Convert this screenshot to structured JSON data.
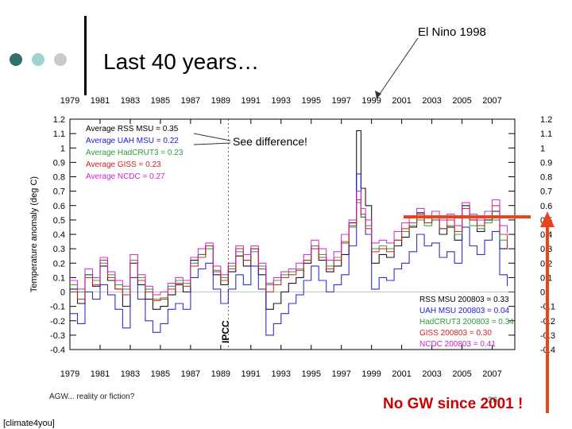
{
  "slide": {
    "title": "Last 40 years…",
    "footer_left": "AGW... reality or fiction?",
    "credit": "[climate4you]",
    "page_number": "26",
    "annotation_elnino": "El Nino 1998",
    "annotation_nogw": "No GW since 2001 !",
    "dot_colors": [
      "#2f6f6f",
      "#9fd0d4",
      "#c9c9c9"
    ]
  },
  "chart_data": {
    "type": "line",
    "title": "",
    "ylabel": "Temperature anomaly (deg C)",
    "xlabel": "",
    "ylim": [
      -0.4,
      1.2
    ],
    "yticks": [
      1.2,
      1.1,
      1,
      0.9,
      0.8,
      0.7,
      0.6,
      0.5,
      0.4,
      0.3,
      0.2,
      0.1,
      0,
      -0.1,
      -0.2,
      -0.3,
      -0.4
    ],
    "ytick_labels": [
      "1.2",
      "1.1",
      "1",
      "0.9",
      "0.8",
      "0.7",
      "0.6",
      "0.5",
      "0.4",
      "0.3",
      "0.2",
      "0.1",
      "0",
      "-0.1",
      "-0.2",
      "-0.3",
      "-0.4"
    ],
    "xlim": [
      1979,
      2008.5
    ],
    "xticks": [
      1979,
      1981,
      1983,
      1985,
      1987,
      1989,
      1991,
      1993,
      1995,
      1997,
      1999,
      2001,
      2003,
      2005,
      2007
    ],
    "legend_top_left": [
      {
        "text": "Average RSS MSU = 0.35",
        "color": "#000000"
      },
      {
        "text": "Average UAH MSU = 0.22",
        "color": "#1a1acc"
      },
      {
        "text": "Average HadCRUT3 = 0.23",
        "color": "#2a9a3a"
      },
      {
        "text": "Average GISS = 0.23",
        "color": "#cc2222"
      },
      {
        "text": "Average NCDC = 0.27",
        "color": "#cc22cc"
      }
    ],
    "legend_bottom_right": [
      {
        "text": "RSS MSU 200803 = 0.33",
        "color": "#000000"
      },
      {
        "text": "UAH MSU 200803 = 0.04",
        "color": "#1a1acc"
      },
      {
        "text": "HadCRUT3 200803 = 0.34",
        "color": "#2a9a3a"
      },
      {
        "text": "GISS 200803 = 0.30",
        "color": "#cc2222"
      },
      {
        "text": "NCDC 200803 = 0.41",
        "color": "#cc22cc"
      }
    ],
    "annotations": {
      "see_difference": "See difference!",
      "ipcc": "IPCC"
    },
    "series": [
      {
        "name": "RSS MSU",
        "color": "#000000",
        "x": [
          1979,
          1979.5,
          1980,
          1980.5,
          1981,
          1981.5,
          1982,
          1982.5,
          1983,
          1983.5,
          1984,
          1984.5,
          1985,
          1985.5,
          1986,
          1986.5,
          1987,
          1987.5,
          1988,
          1988.5,
          1989,
          1989.5,
          1990,
          1990.5,
          1991,
          1991.5,
          1992,
          1992.5,
          1993,
          1993.5,
          1994,
          1994.5,
          1995,
          1995.5,
          1996,
          1996.5,
          1997,
          1997.5,
          1998,
          1998.3,
          1998.6,
          1999,
          1999.5,
          2000,
          2000.5,
          2001,
          2001.5,
          2002,
          2002.5,
          2003,
          2003.5,
          2004,
          2004.5,
          2005,
          2005.5,
          2006,
          2006.5,
          2007,
          2007.5,
          2008
        ],
        "y": [
          0.02,
          -0.08,
          0.12,
          0.04,
          0.18,
          0.08,
          0.02,
          -0.1,
          0.2,
          0.05,
          -0.05,
          -0.12,
          -0.1,
          -0.02,
          0.05,
          0.0,
          0.22,
          0.26,
          0.32,
          0.12,
          0.05,
          0.14,
          0.25,
          0.18,
          0.3,
          0.12,
          -0.12,
          -0.08,
          0.0,
          0.06,
          0.1,
          0.2,
          0.32,
          0.22,
          0.14,
          0.18,
          0.26,
          0.48,
          1.12,
          0.72,
          0.6,
          0.2,
          0.26,
          0.24,
          0.32,
          0.38,
          0.45,
          0.55,
          0.48,
          0.5,
          0.4,
          0.45,
          0.36,
          0.6,
          0.5,
          0.42,
          0.5,
          0.56,
          0.3,
          0.33
        ]
      },
      {
        "name": "UAH MSU",
        "color": "#1a1acc",
        "x": [
          1979,
          1979.5,
          1980,
          1980.5,
          1981,
          1981.5,
          1982,
          1982.5,
          1983,
          1983.5,
          1984,
          1984.5,
          1985,
          1985.5,
          1986,
          1986.5,
          1987,
          1987.5,
          1988,
          1988.5,
          1989,
          1989.5,
          1990,
          1990.5,
          1991,
          1991.5,
          1992,
          1992.5,
          1993,
          1993.5,
          1994,
          1994.5,
          1995,
          1995.5,
          1996,
          1996.5,
          1997,
          1997.5,
          1998,
          1998.3,
          1998.6,
          1999,
          1999.5,
          2000,
          2000.5,
          2001,
          2001.5,
          2002,
          2002.5,
          2003,
          2003.5,
          2004,
          2004.5,
          2005,
          2005.5,
          2006,
          2006.5,
          2007,
          2007.5,
          2008
        ],
        "y": [
          -0.15,
          -0.22,
          0.0,
          -0.05,
          0.05,
          -0.02,
          -0.12,
          -0.25,
          0.1,
          -0.05,
          -0.2,
          -0.28,
          -0.22,
          -0.12,
          -0.08,
          -0.12,
          0.1,
          0.16,
          0.2,
          0.02,
          -0.08,
          0.02,
          0.12,
          0.05,
          0.18,
          0.02,
          -0.3,
          -0.22,
          -0.15,
          -0.08,
          -0.02,
          0.08,
          0.18,
          0.08,
          0.0,
          0.05,
          0.12,
          0.32,
          0.82,
          0.52,
          0.4,
          0.02,
          0.1,
          0.08,
          0.16,
          0.2,
          0.28,
          0.4,
          0.32,
          0.34,
          0.24,
          0.28,
          0.2,
          0.45,
          0.32,
          0.26,
          0.36,
          0.42,
          0.12,
          0.04
        ]
      },
      {
        "name": "HadCRUT3",
        "color": "#2a9a3a",
        "x": [
          1979,
          1979.5,
          1980,
          1980.5,
          1981,
          1981.5,
          1982,
          1982.5,
          1983,
          1983.5,
          1984,
          1984.5,
          1985,
          1985.5,
          1986,
          1986.5,
          1987,
          1987.5,
          1988,
          1988.5,
          1989,
          1989.5,
          1990,
          1990.5,
          1991,
          1991.5,
          1992,
          1992.5,
          1993,
          1993.5,
          1994,
          1994.5,
          1995,
          1995.5,
          1996,
          1996.5,
          1997,
          1997.5,
          1998,
          1998.3,
          1998.6,
          1999,
          1999.5,
          2000,
          2000.5,
          2001,
          2001.5,
          2002,
          2002.5,
          2003,
          2003.5,
          2004,
          2004.5,
          2005,
          2005.5,
          2006,
          2006.5,
          2007,
          2007.5,
          2008
        ],
        "y": [
          0.05,
          0.0,
          0.12,
          0.08,
          0.2,
          0.12,
          0.05,
          0.02,
          0.22,
          0.1,
          0.02,
          -0.05,
          -0.04,
          0.04,
          0.08,
          0.06,
          0.2,
          0.26,
          0.3,
          0.15,
          0.1,
          0.18,
          0.28,
          0.22,
          0.28,
          0.18,
          0.05,
          0.08,
          0.12,
          0.14,
          0.16,
          0.22,
          0.32,
          0.26,
          0.18,
          0.24,
          0.35,
          0.45,
          0.62,
          0.52,
          0.46,
          0.3,
          0.32,
          0.3,
          0.36,
          0.42,
          0.46,
          0.5,
          0.46,
          0.5,
          0.44,
          0.46,
          0.4,
          0.52,
          0.46,
          0.44,
          0.48,
          0.5,
          0.36,
          0.34
        ]
      },
      {
        "name": "GISS",
        "color": "#cc2222",
        "x": [
          1979,
          1979.5,
          1980,
          1980.5,
          1981,
          1981.5,
          1982,
          1982.5,
          1983,
          1983.5,
          1984,
          1984.5,
          1985,
          1985.5,
          1986,
          1986.5,
          1987,
          1987.5,
          1988,
          1988.5,
          1989,
          1989.5,
          1990,
          1990.5,
          1991,
          1991.5,
          1992,
          1992.5,
          1993,
          1993.5,
          1994,
          1994.5,
          1995,
          1995.5,
          1996,
          1996.5,
          1997,
          1997.5,
          1998,
          1998.3,
          1998.6,
          1999,
          1999.5,
          2000,
          2000.5,
          2001,
          2001.5,
          2002,
          2002.5,
          2003,
          2003.5,
          2004,
          2004.5,
          2005,
          2005.5,
          2006,
          2006.5,
          2007,
          2007.5,
          2008
        ],
        "y": [
          0.0,
          -0.05,
          0.1,
          0.05,
          0.22,
          0.1,
          0.02,
          -0.02,
          0.2,
          0.08,
          0.0,
          -0.06,
          -0.05,
          0.02,
          0.06,
          0.04,
          0.18,
          0.24,
          0.32,
          0.14,
          0.08,
          0.16,
          0.3,
          0.22,
          0.3,
          0.16,
          0.0,
          0.05,
          0.1,
          0.12,
          0.15,
          0.22,
          0.3,
          0.24,
          0.16,
          0.22,
          0.34,
          0.46,
          0.64,
          0.54,
          0.44,
          0.28,
          0.3,
          0.28,
          0.36,
          0.44,
          0.48,
          0.54,
          0.48,
          0.52,
          0.44,
          0.5,
          0.42,
          0.58,
          0.5,
          0.46,
          0.52,
          0.6,
          0.4,
          0.3
        ]
      },
      {
        "name": "NCDC",
        "color": "#cc22cc",
        "x": [
          1979,
          1979.5,
          1980,
          1980.5,
          1981,
          1981.5,
          1982,
          1982.5,
          1983,
          1983.5,
          1984,
          1984.5,
          1985,
          1985.5,
          1986,
          1986.5,
          1987,
          1987.5,
          1988,
          1988.5,
          1989,
          1989.5,
          1990,
          1990.5,
          1991,
          1991.5,
          1992,
          1992.5,
          1993,
          1993.5,
          1994,
          1994.5,
          1995,
          1995.5,
          1996,
          1996.5,
          1997,
          1997.5,
          1998,
          1998.3,
          1998.6,
          1999,
          1999.5,
          2000,
          2000.5,
          2001,
          2001.5,
          2002,
          2002.5,
          2003,
          2003.5,
          2004,
          2004.5,
          2005,
          2005.5,
          2006,
          2006.5,
          2007,
          2007.5,
          2008
        ],
        "y": [
          0.08,
          0.02,
          0.16,
          0.1,
          0.24,
          0.14,
          0.08,
          0.04,
          0.26,
          0.12,
          0.04,
          -0.02,
          0.0,
          0.06,
          0.1,
          0.08,
          0.24,
          0.3,
          0.34,
          0.18,
          0.12,
          0.2,
          0.32,
          0.26,
          0.32,
          0.2,
          0.06,
          0.1,
          0.14,
          0.16,
          0.2,
          0.26,
          0.36,
          0.3,
          0.22,
          0.28,
          0.4,
          0.5,
          0.7,
          0.58,
          0.5,
          0.34,
          0.36,
          0.34,
          0.42,
          0.48,
          0.52,
          0.58,
          0.52,
          0.56,
          0.5,
          0.54,
          0.46,
          0.62,
          0.54,
          0.5,
          0.56,
          0.64,
          0.46,
          0.41
        ]
      }
    ]
  }
}
